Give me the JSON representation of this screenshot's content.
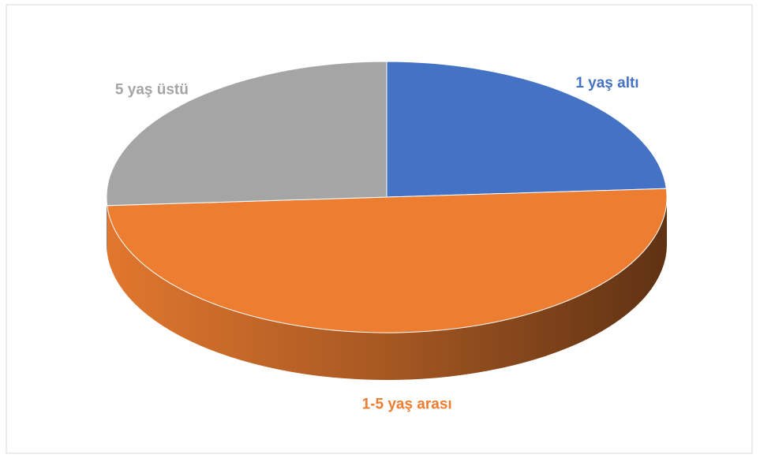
{
  "chart_data": {
    "type": "pie",
    "categories": [
      "1 yaş altı",
      "1-5 yaş arası",
      "5 yaş üstü"
    ],
    "values": [
      24,
      50,
      26
    ],
    "colors": [
      "#4472c4",
      "#ed7d31",
      "#a5a5a5"
    ]
  }
}
